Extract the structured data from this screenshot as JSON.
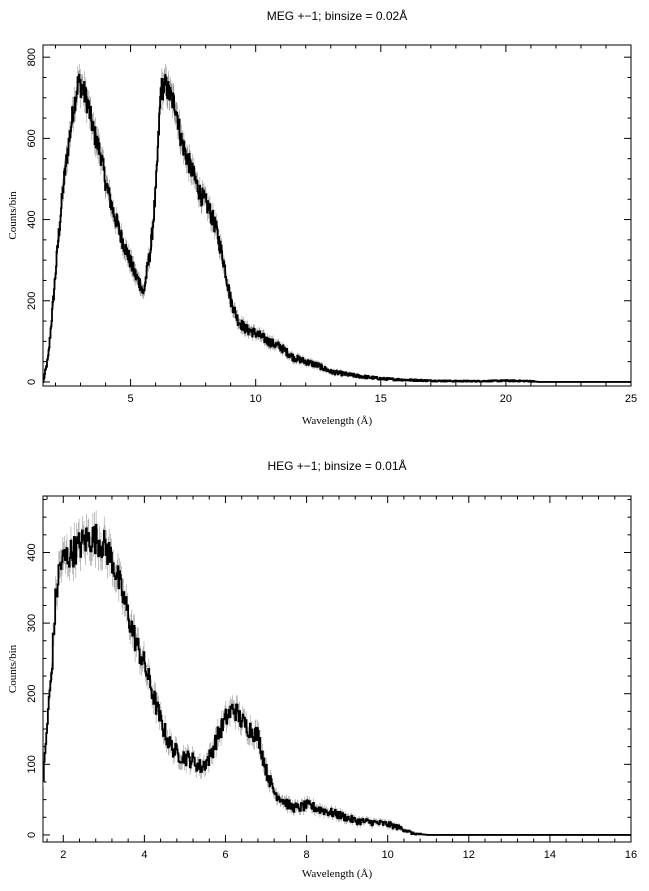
{
  "chart_data": [
    {
      "type": "line",
      "title": "MEG +−1; binsize = 0.02Å",
      "xlabel": "Wavelength (Å)",
      "ylabel": "Counts/bin",
      "xlim": [
        1.5,
        25
      ],
      "ylim": [
        -10,
        830
      ],
      "xticks": [
        5,
        10,
        15,
        20,
        25
      ],
      "yticks": [
        0,
        200,
        400,
        600,
        800
      ],
      "grid": false,
      "error_bars": true,
      "series": [
        {
          "x": [
            1.5,
            1.7,
            1.9,
            2.1,
            2.3,
            2.5,
            2.7,
            2.9,
            3.1,
            3.3,
            3.5,
            3.8,
            4.0,
            4.3,
            4.6,
            4.9,
            5.2,
            5.4,
            5.5,
            5.6,
            5.8,
            6.0,
            6.2,
            6.4,
            6.6,
            6.8,
            7.0,
            7.2,
            7.5,
            7.8,
            8.1,
            8.4,
            8.7,
            9.0,
            9.3,
            9.6,
            10.0,
            10.5,
            11.0,
            11.5,
            12.0,
            12.5,
            13.0,
            14.0,
            15.0,
            16.0,
            17.0,
            18.0,
            19.0,
            20.0,
            21.0,
            21.3,
            22.0,
            25.0
          ],
          "y": [
            0,
            60,
            200,
            350,
            480,
            580,
            670,
            740,
            720,
            680,
            620,
            560,
            490,
            420,
            360,
            310,
            260,
            240,
            215,
            255,
            330,
            470,
            720,
            730,
            700,
            680,
            600,
            560,
            510,
            460,
            430,
            380,
            300,
            200,
            150,
            130,
            120,
            100,
            85,
            60,
            50,
            40,
            25,
            15,
            8,
            5,
            3,
            2,
            2,
            3,
            2,
            0,
            0,
            0
          ]
        }
      ]
    },
    {
      "type": "line",
      "title": "HEG +−1; binsize = 0.01Å",
      "xlabel": "Wavelength (Å)",
      "ylabel": "Counts/bin",
      "xlim": [
        1.5,
        16
      ],
      "ylim": [
        -10,
        480
      ],
      "xticks": [
        2,
        4,
        6,
        8,
        10,
        12,
        14,
        16
      ],
      "yticks": [
        0,
        100,
        200,
        300,
        400
      ],
      "grid": false,
      "error_bars": true,
      "series": [
        {
          "x": [
            1.5,
            1.6,
            1.7,
            1.8,
            1.9,
            2.0,
            2.2,
            2.4,
            2.6,
            2.8,
            3.0,
            3.2,
            3.4,
            3.6,
            3.8,
            4.0,
            4.2,
            4.4,
            4.6,
            4.8,
            5.0,
            5.2,
            5.4,
            5.6,
            5.8,
            6.0,
            6.2,
            6.4,
            6.6,
            6.8,
            7.0,
            7.2,
            7.4,
            7.6,
            7.8,
            8.0,
            8.4,
            8.8,
            9.2,
            9.6,
            10.0,
            10.4,
            10.6,
            11.0,
            12.0,
            14.0,
            16.0
          ],
          "y": [
            80,
            160,
            230,
            330,
            380,
            390,
            400,
            410,
            420,
            420,
            410,
            390,
            350,
            310,
            270,
            240,
            200,
            160,
            130,
            115,
            110,
            105,
            95,
            110,
            140,
            165,
            180,
            160,
            150,
            140,
            90,
            60,
            50,
            40,
            38,
            42,
            35,
            28,
            20,
            18,
            15,
            8,
            2,
            0,
            0,
            0,
            0
          ]
        }
      ]
    }
  ]
}
